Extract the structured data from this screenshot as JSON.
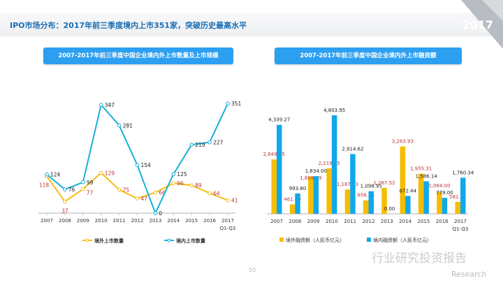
{
  "header": {
    "title": "IPO市场分布：2017年前三季度境内上市351家，突破历史最高水平",
    "year_badge": "2017"
  },
  "colors": {
    "domestic": "#1ab0d8",
    "overseas": "#f5bd16",
    "bar_domestic": "#11a8ea",
    "bar_overseas": "#f5bd00",
    "label_red": "#c0333a",
    "button": "#2d9ff1"
  },
  "footer": {
    "page_number": "50",
    "watermark": "行业研究投资报告",
    "watermark_sub": "Research"
  },
  "chart_data": [
    {
      "type": "line",
      "title": "2007-2017年前三季度中国企业境内外上市数量及上市规模",
      "categories": [
        "2007",
        "2008",
        "2009",
        "2010",
        "2011",
        "2012",
        "2013",
        "2014",
        "2015",
        "2016",
        "2017"
      ],
      "last_category_note": "Q1-Q3",
      "series": [
        {
          "name": "境外上市数量",
          "values": [
            118,
            37,
            77,
            129,
            75,
            47,
            66,
            96,
            89,
            64,
            41
          ]
        },
        {
          "name": "境内上市数量",
          "values": [
            124,
            76,
            99,
            347,
            281,
            154,
            0,
            125,
            219,
            227,
            351
          ]
        }
      ],
      "legend": "bottom",
      "grid": false
    },
    {
      "type": "bar",
      "title": "2007-2017年前三季度中国企业境内外上市融资额",
      "categories": [
        "2007",
        "2008",
        "2009",
        "2010",
        "2011",
        "2012",
        "2013",
        "2014",
        "2015",
        "2016",
        "2017"
      ],
      "last_category_note": "Q1-Q3",
      "series": [
        {
          "name": "境外融资额（人民币亿元）",
          "values": [
            2649.65,
            461.49,
            1809.29,
            2219.65,
            1187.53,
            656.16,
            1267.52,
            3283.93,
            1955.31,
            1064.0,
            582.05
          ],
          "labels": [
            "2,649.65",
            "461.49",
            "1,809.29",
            "2,219.65",
            "1,187.53",
            "656.16",
            "1,267.52",
            "3,283.93",
            "1,955.31",
            "1,064.00",
            "582.05"
          ]
        },
        {
          "name": "境内融资额（人民币亿元）",
          "values": [
            4339.27,
            993.8,
            1834.0,
            4803.95,
            2914.62,
            1098.95,
            0.0,
            872.44,
            1586.14,
            779.0,
            1760.34
          ],
          "labels": [
            "4,339.27",
            "993.80",
            "1,834.00",
            "4,803.95",
            "2,914.62",
            "1,098.95",
            "0.00",
            "872.44",
            "1,586.14",
            "779.00",
            "1,760.34"
          ]
        }
      ],
      "legend": "bottom",
      "grid": false
    }
  ]
}
